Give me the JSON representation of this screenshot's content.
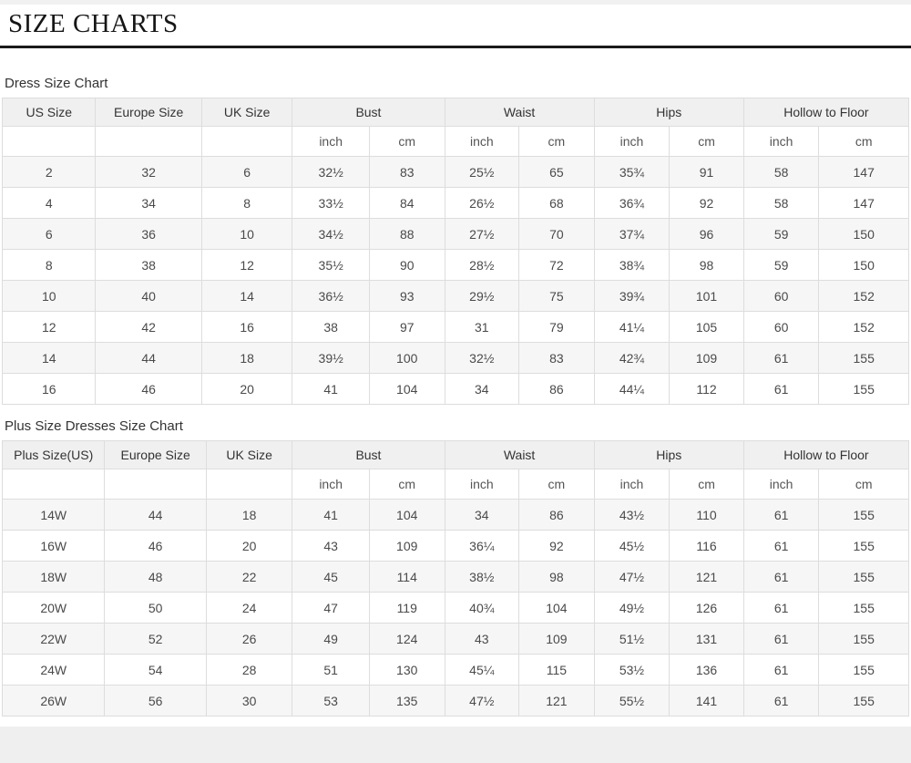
{
  "page": {
    "title": "SIZE CHARTS"
  },
  "colors": {
    "title_rule": "#1a1a1a",
    "header_bg": "#f0f0f0",
    "row_stripe": "#f6f6f6",
    "table_border": "#dddddd",
    "footer_bg": "#efefef"
  },
  "tables": [
    {
      "caption": "Dress Size Chart",
      "columns": [
        {
          "label": "US Size",
          "span": 1
        },
        {
          "label": "Europe Size",
          "span": 1
        },
        {
          "label": "UK Size",
          "span": 1
        },
        {
          "label": "Bust",
          "span": 2
        },
        {
          "label": "Waist",
          "span": 2
        },
        {
          "label": "Hips",
          "span": 2
        },
        {
          "label": "Hollow to Floor",
          "span": 2
        }
      ],
      "unit_row": [
        "",
        "",
        "",
        "inch",
        "cm",
        "inch",
        "cm",
        "inch",
        "cm",
        "inch",
        "cm"
      ],
      "rows": [
        [
          "2",
          "32",
          "6",
          "32½",
          "83",
          "25½",
          "65",
          "35¾",
          "91",
          "58",
          "147"
        ],
        [
          "4",
          "34",
          "8",
          "33½",
          "84",
          "26½",
          "68",
          "36¾",
          "92",
          "58",
          "147"
        ],
        [
          "6",
          "36",
          "10",
          "34½",
          "88",
          "27½",
          "70",
          "37¾",
          "96",
          "59",
          "150"
        ],
        [
          "8",
          "38",
          "12",
          "35½",
          "90",
          "28½",
          "72",
          "38¾",
          "98",
          "59",
          "150"
        ],
        [
          "10",
          "40",
          "14",
          "36½",
          "93",
          "29½",
          "75",
          "39¾",
          "101",
          "60",
          "152"
        ],
        [
          "12",
          "42",
          "16",
          "38",
          "97",
          "31",
          "79",
          "41¼",
          "105",
          "60",
          "152"
        ],
        [
          "14",
          "44",
          "18",
          "39½",
          "100",
          "32½",
          "83",
          "42¾",
          "109",
          "61",
          "155"
        ],
        [
          "16",
          "46",
          "20",
          "41",
          "104",
          "34",
          "86",
          "44¼",
          "112",
          "61",
          "155"
        ]
      ]
    },
    {
      "caption": "Plus Size Dresses Size Chart",
      "columns": [
        {
          "label": "Plus Size(US)",
          "span": 1
        },
        {
          "label": "Europe Size",
          "span": 1
        },
        {
          "label": "UK Size",
          "span": 1
        },
        {
          "label": "Bust",
          "span": 2
        },
        {
          "label": "Waist",
          "span": 2
        },
        {
          "label": "Hips",
          "span": 2
        },
        {
          "label": "Hollow to Floor",
          "span": 2
        }
      ],
      "unit_row": [
        "",
        "",
        "",
        "inch",
        "cm",
        "inch",
        "cm",
        "inch",
        "cm",
        "inch",
        "cm"
      ],
      "rows": [
        [
          "14W",
          "44",
          "18",
          "41",
          "104",
          "34",
          "86",
          "43½",
          "110",
          "61",
          "155"
        ],
        [
          "16W",
          "46",
          "20",
          "43",
          "109",
          "36¼",
          "92",
          "45½",
          "116",
          "61",
          "155"
        ],
        [
          "18W",
          "48",
          "22",
          "45",
          "114",
          "38½",
          "98",
          "47½",
          "121",
          "61",
          "155"
        ],
        [
          "20W",
          "50",
          "24",
          "47",
          "119",
          "40¾",
          "104",
          "49½",
          "126",
          "61",
          "155"
        ],
        [
          "22W",
          "52",
          "26",
          "49",
          "124",
          "43",
          "109",
          "51½",
          "131",
          "61",
          "155"
        ],
        [
          "24W",
          "54",
          "28",
          "51",
          "130",
          "45¼",
          "115",
          "53½",
          "136",
          "61",
          "155"
        ],
        [
          "26W",
          "56",
          "30",
          "53",
          "135",
          "47½",
          "121",
          "55½",
          "141",
          "61",
          "155"
        ]
      ]
    }
  ]
}
